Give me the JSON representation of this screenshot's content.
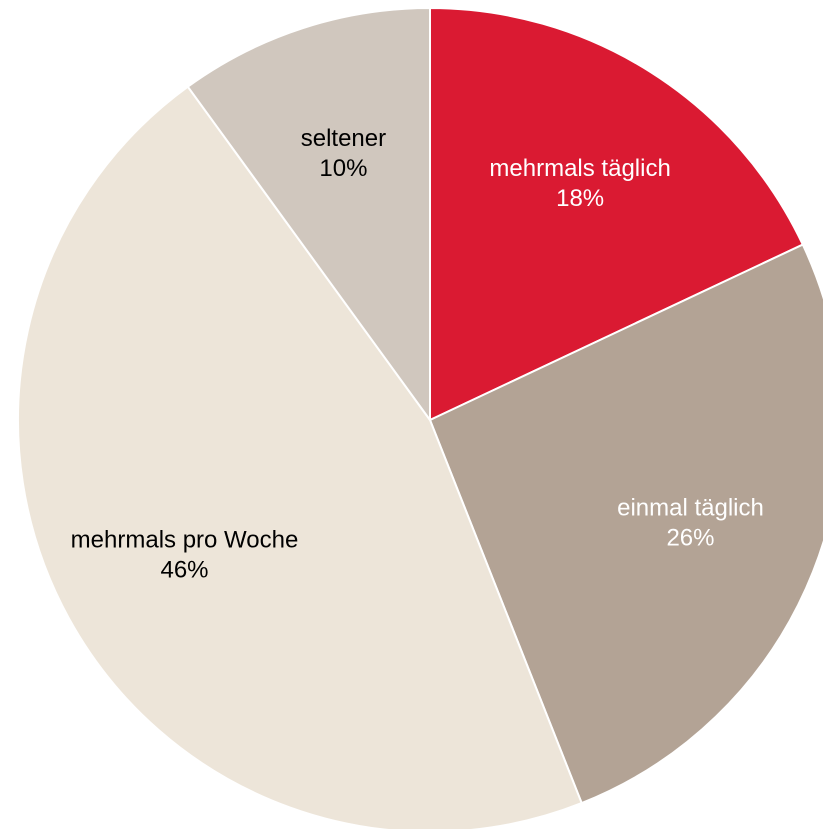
{
  "chart_data": {
    "type": "pie",
    "categories": [
      "mehrmals täglich",
      "einmal täglich",
      "mehrmals pro Woche",
      "seltener"
    ],
    "values": [
      18,
      26,
      46,
      10
    ],
    "value_labels": [
      "18%",
      "26%",
      "46%",
      "10%"
    ],
    "colors": [
      "#da1a32",
      "#b3a395",
      "#ede5d9",
      "#d0c7be"
    ],
    "label_colors": [
      "#ffffff",
      "#ffffff",
      "#000000",
      "#000000"
    ]
  }
}
